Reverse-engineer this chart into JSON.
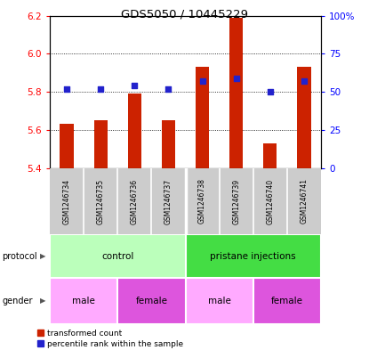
{
  "title": "GDS5050 / 10445229",
  "samples": [
    "GSM1246734",
    "GSM1246735",
    "GSM1246736",
    "GSM1246737",
    "GSM1246738",
    "GSM1246739",
    "GSM1246740",
    "GSM1246741"
  ],
  "red_values": [
    5.63,
    5.65,
    5.79,
    5.65,
    5.93,
    6.19,
    5.53,
    5.93
  ],
  "blue_values": [
    52,
    52,
    54,
    52,
    57,
    59,
    50,
    57
  ],
  "ylim_left": [
    5.4,
    6.2
  ],
  "ylim_right": [
    0,
    100
  ],
  "yticks_left": [
    5.4,
    5.6,
    5.8,
    6.0,
    6.2
  ],
  "yticks_right": [
    0,
    25,
    50,
    75,
    100
  ],
  "protocol_groups": [
    {
      "label": "control",
      "start": 0,
      "end": 4,
      "color": "#bbffbb"
    },
    {
      "label": "pristane injections",
      "start": 4,
      "end": 8,
      "color": "#44dd44"
    }
  ],
  "gender_groups": [
    {
      "label": "male",
      "start": 0,
      "end": 2,
      "color": "#ffaaff"
    },
    {
      "label": "female",
      "start": 2,
      "end": 4,
      "color": "#dd55dd"
    },
    {
      "label": "male",
      "start": 4,
      "end": 6,
      "color": "#ffaaff"
    },
    {
      "label": "female",
      "start": 6,
      "end": 8,
      "color": "#dd55dd"
    }
  ],
  "bar_color": "#cc2200",
  "dot_color": "#2222cc",
  "sample_label_bg": "#cccccc",
  "plot_bg": "#ffffff",
  "legend_red_label": "transformed count",
  "legend_blue_label": "percentile rank within the sample",
  "bar_width": 0.4
}
